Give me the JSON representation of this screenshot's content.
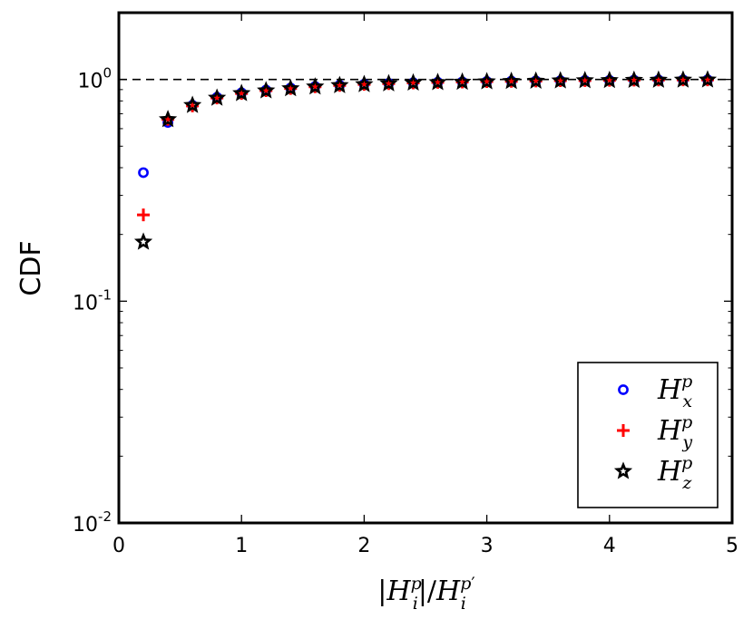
{
  "chart_data": {
    "type": "scatter",
    "title": "",
    "xlabel": "|H_i^p|/H_i^p′",
    "ylabel": "CDF",
    "xlim": [
      0,
      5
    ],
    "ylim": [
      0.01,
      2
    ],
    "yscale": "log",
    "xticks": [
      "0",
      "1",
      "2",
      "3",
      "4",
      "5"
    ],
    "yticks": [
      {
        "value": 0.01,
        "base": "10",
        "exp": "-2"
      },
      {
        "value": 0.1,
        "base": "10",
        "exp": "-1"
      },
      {
        "value": 1,
        "base": "10",
        "exp": "0"
      }
    ],
    "reference_line": {
      "y": 1,
      "style": "dashed",
      "color": "#000000"
    },
    "grid": false,
    "legend": "lower-right",
    "series": [
      {
        "name": "H_x^p",
        "marker": "circle",
        "color": "#0000ff",
        "x": [
          0.2,
          0.4,
          0.6,
          0.8,
          1.0,
          1.2,
          1.4,
          1.6,
          1.8,
          2.0,
          2.2,
          2.4,
          2.6,
          2.8,
          3.0,
          3.2,
          3.4,
          3.6,
          3.8,
          4.0,
          4.2,
          4.4,
          4.6,
          4.8
        ],
        "y": [
          0.38,
          0.64,
          0.765,
          0.83,
          0.87,
          0.895,
          0.915,
          0.93,
          0.942,
          0.952,
          0.96,
          0.966,
          0.971,
          0.975,
          0.979,
          0.982,
          0.985,
          0.987,
          0.989,
          0.991,
          0.993,
          0.994,
          0.995,
          0.996
        ]
      },
      {
        "name": "H_y^p",
        "marker": "plus",
        "color": "#ff0000",
        "x": [
          0.2,
          0.4,
          0.6,
          0.8,
          1.0,
          1.2,
          1.4,
          1.6,
          1.8,
          2.0,
          2.2,
          2.4,
          2.6,
          2.8,
          3.0,
          3.2,
          3.4,
          3.6,
          3.8,
          4.0,
          4.2,
          4.4,
          4.6,
          4.8
        ],
        "y": [
          0.245,
          0.66,
          0.76,
          0.825,
          0.865,
          0.89,
          0.91,
          0.927,
          0.94,
          0.95,
          0.958,
          0.965,
          0.97,
          0.974,
          0.978,
          0.981,
          0.984,
          0.987,
          0.989,
          0.991,
          0.993,
          0.994,
          0.995,
          0.996
        ]
      },
      {
        "name": "H_z^p",
        "marker": "star",
        "color": "#000000",
        "x": [
          0.2,
          0.4,
          0.6,
          0.8,
          1.0,
          1.2,
          1.4,
          1.6,
          1.8,
          2.0,
          2.2,
          2.4,
          2.6,
          2.8,
          3.0,
          3.2,
          3.4,
          3.6,
          3.8,
          4.0,
          4.2,
          4.4,
          4.6,
          4.8
        ],
        "y": [
          0.185,
          0.66,
          0.765,
          0.825,
          0.865,
          0.89,
          0.91,
          0.927,
          0.94,
          0.95,
          0.958,
          0.965,
          0.97,
          0.974,
          0.978,
          0.981,
          0.984,
          0.987,
          0.989,
          0.991,
          0.993,
          0.994,
          0.995,
          0.996
        ]
      }
    ]
  }
}
